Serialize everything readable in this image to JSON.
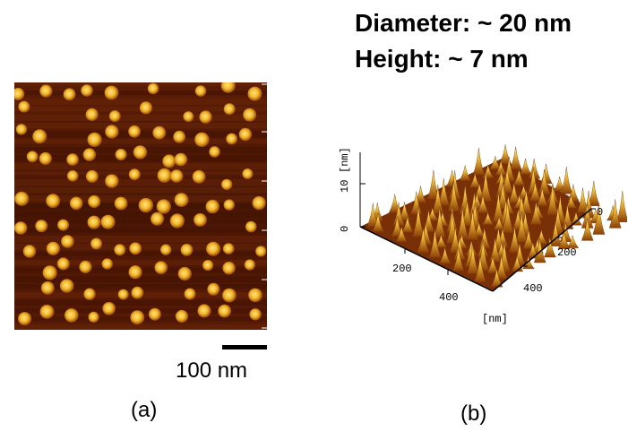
{
  "panel_a": {
    "scale_label": "100 nm",
    "panel_label": "(a)",
    "colors": {
      "background": "#4a1604",
      "dot": "#f0bd2a",
      "dot_core": "#ffe066"
    }
  },
  "panel_b": {
    "diameter_text": "Diameter: ~ 20 nm",
    "height_text": "Height: ~ 7 nm",
    "panel_label": "(b)",
    "z_axis": {
      "label": "[nm]",
      "ticks": [
        "10",
        "0"
      ]
    },
    "x_axis": {
      "ticks": [
        "200",
        "400"
      ],
      "unit": "[nm]"
    },
    "y_axis": {
      "ticks": [
        "0",
        "200",
        "400"
      ]
    }
  }
}
